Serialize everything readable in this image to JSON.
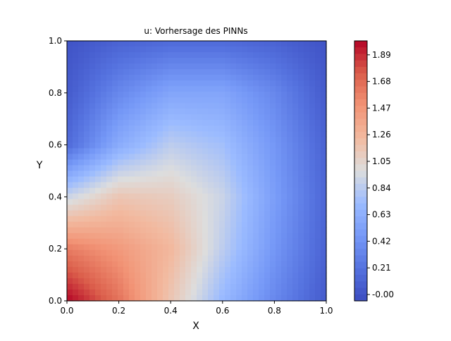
{
  "chart_data": {
    "type": "heatmap",
    "title": "u: Vorhersage des PINNs",
    "xlabel": "X",
    "ylabel": "Y",
    "xlim": [
      0.0,
      1.0
    ],
    "ylim": [
      0.0,
      1.0
    ],
    "x_ticks": [
      "0.0",
      "0.2",
      "0.4",
      "0.6",
      "0.8",
      "1.0"
    ],
    "y_ticks": [
      "0.0",
      "0.2",
      "0.4",
      "0.6",
      "0.8",
      "1.0"
    ],
    "colormap": "coolwarm",
    "color_range": [
      -0.05,
      2.0
    ],
    "colorbar_ticks": [
      "-0.00",
      "0.21",
      "0.42",
      "0.63",
      "0.84",
      "1.05",
      "1.26",
      "1.47",
      "1.68",
      "1.89"
    ],
    "field_samples": {
      "x": [
        0.0,
        0.2,
        0.4,
        0.6,
        0.8,
        1.0
      ],
      "y": [
        0.0,
        0.2,
        0.4,
        0.6,
        0.8,
        1.0
      ],
      "values": [
        [
          2.0,
          1.65,
          1.15,
          0.7,
          0.35,
          0.05
        ],
        [
          1.6,
          1.45,
          1.25,
          0.85,
          0.45,
          0.1
        ],
        [
          0.9,
          1.15,
          1.1,
          0.9,
          0.5,
          0.12
        ],
        [
          0.15,
          0.6,
          0.85,
          0.75,
          0.45,
          0.1
        ],
        [
          0.05,
          0.35,
          0.55,
          0.55,
          0.35,
          0.05
        ],
        [
          0.0,
          0.1,
          0.15,
          0.15,
          0.1,
          0.0
        ]
      ]
    }
  }
}
